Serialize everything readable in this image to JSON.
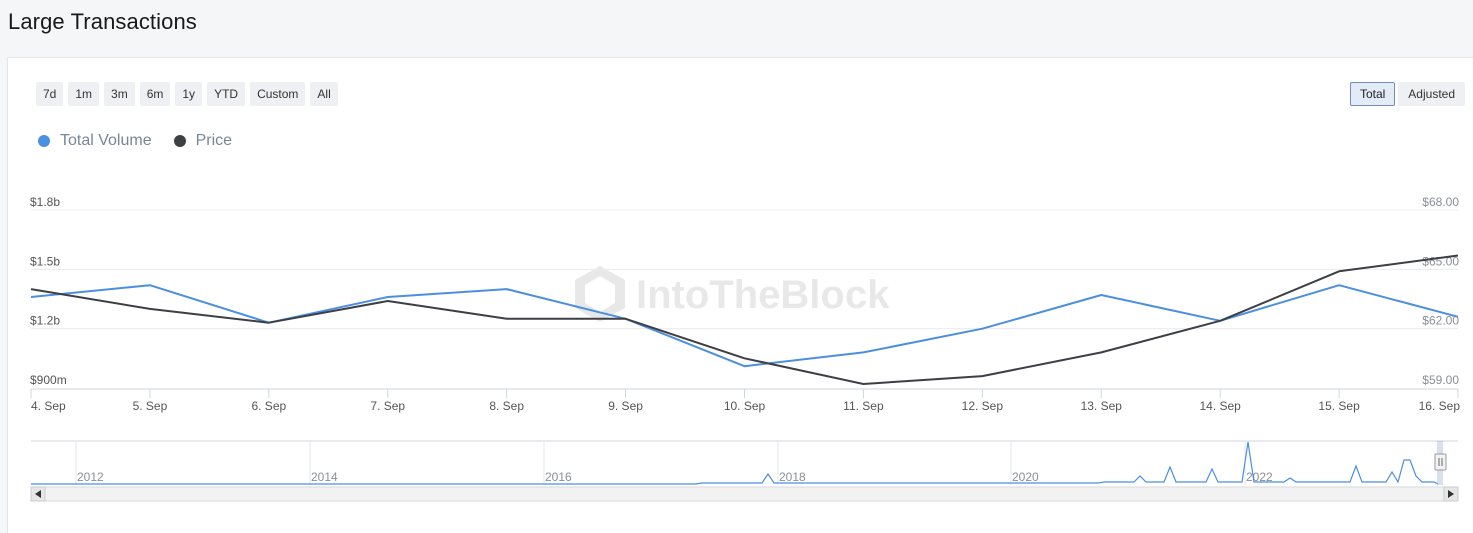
{
  "page": {
    "title": "Large Transactions"
  },
  "range_buttons": [
    "7d",
    "1m",
    "3m",
    "6m",
    "1y",
    "YTD",
    "Custom",
    "All"
  ],
  "mode_buttons": {
    "total": "Total",
    "adjusted": "Adjusted",
    "active": "Total"
  },
  "watermark": "IntoTheBlock",
  "navigator": {
    "year_labels": [
      "2012",
      "2014",
      "2016",
      "2018",
      "2020",
      "2022"
    ]
  },
  "colors": {
    "volume": "#4a8fe0",
    "price": "#3c3f44",
    "grid": "#e9ecef"
  },
  "chart_data": {
    "type": "line",
    "x": [
      "4. Sep",
      "5. Sep",
      "6. Sep",
      "7. Sep",
      "8. Sep",
      "9. Sep",
      "10. Sep",
      "11. Sep",
      "12. Sep",
      "13. Sep",
      "14. Sep",
      "15. Sep",
      "16. Sep"
    ],
    "series": [
      {
        "name": "Total Volume",
        "axis": "left",
        "color": "#4a8fe0",
        "values": [
          1.36,
          1.42,
          1.23,
          1.36,
          1.4,
          1.25,
          1.01,
          1.08,
          1.2,
          1.37,
          1.24,
          1.42,
          1.26
        ]
      },
      {
        "name": "Price",
        "axis": "right",
        "color": "#3c3f44",
        "values": [
          64.0,
          63.0,
          62.3,
          63.4,
          62.5,
          62.5,
          60.5,
          59.2,
          59.6,
          60.8,
          62.4,
          64.9,
          65.7
        ]
      }
    ],
    "left_axis": {
      "ticks": [
        "$1.8b",
        "$1.5b",
        "$1.2b",
        "$900m"
      ],
      "tick_values": [
        1.8,
        1.5,
        1.2,
        0.9
      ],
      "ylim": [
        0.9,
        1.8
      ],
      "unit": "billions USD"
    },
    "right_axis": {
      "ticks": [
        "$68.00",
        "$65.00",
        "$62.00",
        "$59.00"
      ],
      "tick_values": [
        68,
        65,
        62,
        59
      ],
      "ylim": [
        59,
        68
      ]
    },
    "grid": true,
    "legend_position": "top-left"
  }
}
